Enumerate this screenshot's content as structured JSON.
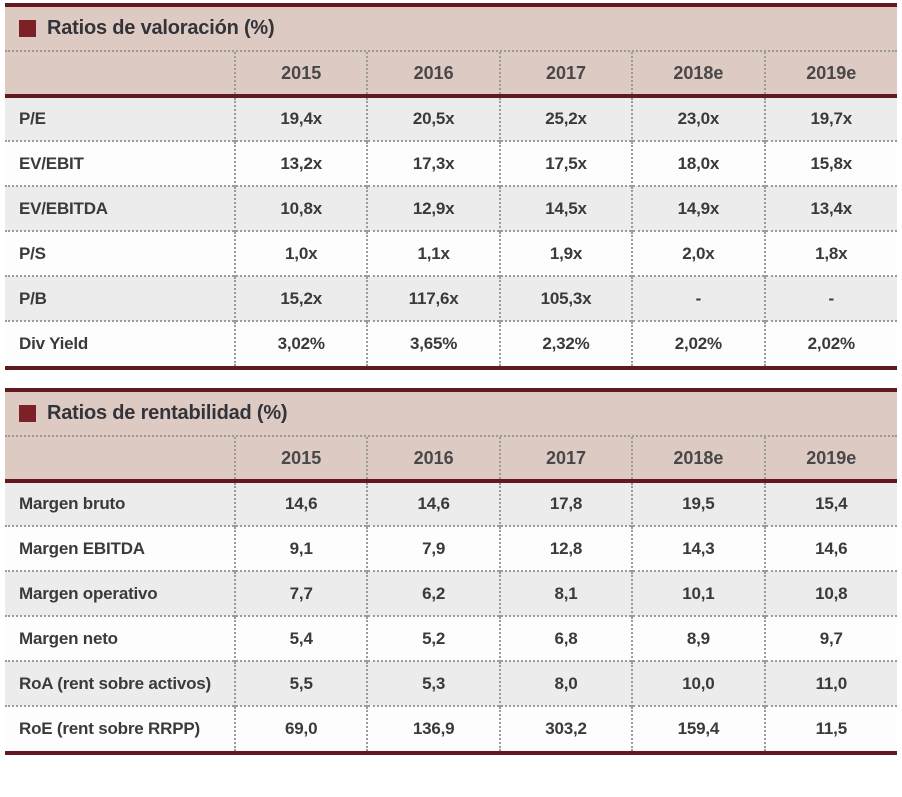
{
  "colors": {
    "rule_maroon": "#641920",
    "marker_maroon": "#7c2125",
    "header_band": "#ddcac2",
    "stripe_gray": "#ececec",
    "stripe_white": "#fdfdfd",
    "dotted_separator": "#9b9b9b",
    "text": "#3a3a3c"
  },
  "table1": {
    "title": "Ratios de valoración (%)",
    "columns": [
      "2015",
      "2016",
      "2017",
      "2018e",
      "2019e"
    ],
    "rows": [
      {
        "label": "P/E",
        "values": [
          "19,4x",
          "20,5x",
          "25,2x",
          "23,0x",
          "19,7x"
        ]
      },
      {
        "label": "EV/EBIT",
        "values": [
          "13,2x",
          "17,3x",
          "17,5x",
          "18,0x",
          "15,8x"
        ]
      },
      {
        "label": "EV/EBITDA",
        "values": [
          "10,8x",
          "12,9x",
          "14,5x",
          "14,9x",
          "13,4x"
        ]
      },
      {
        "label": "P/S",
        "values": [
          "1,0x",
          "1,1x",
          "1,9x",
          "2,0x",
          "1,8x"
        ]
      },
      {
        "label": "P/B",
        "values": [
          "15,2x",
          "117,6x",
          "105,3x",
          "-",
          "-"
        ]
      },
      {
        "label": "Div Yield",
        "values": [
          "3,02%",
          "3,65%",
          "2,32%",
          "2,02%",
          "2,02%"
        ]
      }
    ]
  },
  "table2": {
    "title": "Ratios de rentabilidad (%)",
    "columns": [
      "2015",
      "2016",
      "2017",
      "2018e",
      "2019e"
    ],
    "rows": [
      {
        "label": "Margen bruto",
        "values": [
          "14,6",
          "14,6",
          "17,8",
          "19,5",
          "15,4"
        ]
      },
      {
        "label": "Margen EBITDA",
        "values": [
          "9,1",
          "7,9",
          "12,8",
          "14,3",
          "14,6"
        ]
      },
      {
        "label": "Margen operativo",
        "values": [
          "7,7",
          "6,2",
          "8,1",
          "10,1",
          "10,8"
        ]
      },
      {
        "label": "Margen neto",
        "values": [
          "5,4",
          "5,2",
          "6,8",
          "8,9",
          "9,7"
        ]
      },
      {
        "label": "RoA (rent sobre activos)",
        "values": [
          "5,5",
          "5,3",
          "8,0",
          "10,0",
          "11,0"
        ]
      },
      {
        "label": "RoE (rent sobre RRPP)",
        "values": [
          "69,0",
          "136,9",
          "303,2",
          "159,4",
          "11,5"
        ]
      }
    ]
  }
}
